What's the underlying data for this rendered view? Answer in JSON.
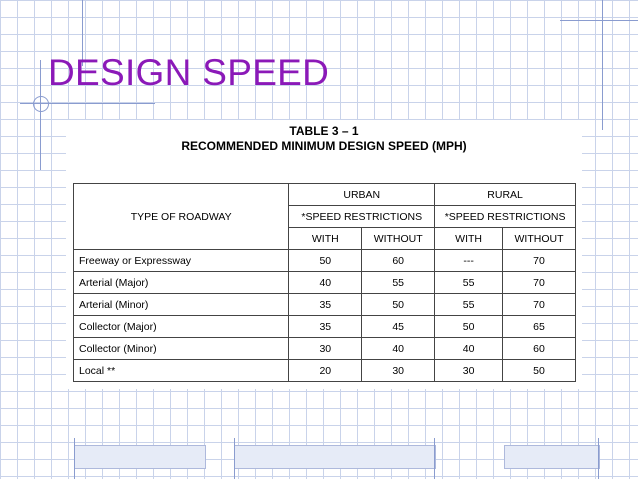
{
  "slide": {
    "title": "DESIGN SPEED"
  },
  "table": {
    "number": "TABLE 3 – 1",
    "caption": "RECOMMENDED MINIMUM DESIGN SPEED (MPH)",
    "type_header": "TYPE OF ROADWAY",
    "groups": [
      {
        "label": "URBAN",
        "restrictions": "*SPEED RESTRICTIONS",
        "with": "WITH",
        "without": "WITHOUT"
      },
      {
        "label": "RURAL",
        "restrictions": "*SPEED RESTRICTIONS",
        "with": "WITH",
        "without": "WITHOUT"
      }
    ],
    "rows": [
      {
        "type": "Freeway or Expressway",
        "urban_with": "50",
        "urban_without": "60",
        "rural_with": "---",
        "rural_without": "70"
      },
      {
        "type": "Arterial (Major)",
        "urban_with": "40",
        "urban_without": "55",
        "rural_with": "55",
        "rural_without": "70"
      },
      {
        "type": "Arterial (Minor)",
        "urban_with": "35",
        "urban_without": "50",
        "rural_with": "55",
        "rural_without": "70"
      },
      {
        "type": "Collector (Major)",
        "urban_with": "35",
        "urban_without": "45",
        "rural_with": "50",
        "rural_without": "65"
      },
      {
        "type": "Collector (Minor)",
        "urban_with": "30",
        "urban_without": "40",
        "rural_with": "40",
        "rural_without": "60"
      },
      {
        "type": "Local **",
        "urban_with": "20",
        "urban_without": "30",
        "rural_with": "30",
        "rural_without": "50"
      }
    ]
  },
  "colors": {
    "title": "#8b19b8",
    "grid": "#c9d3ea",
    "accent_lines": "#8a9ccf"
  }
}
